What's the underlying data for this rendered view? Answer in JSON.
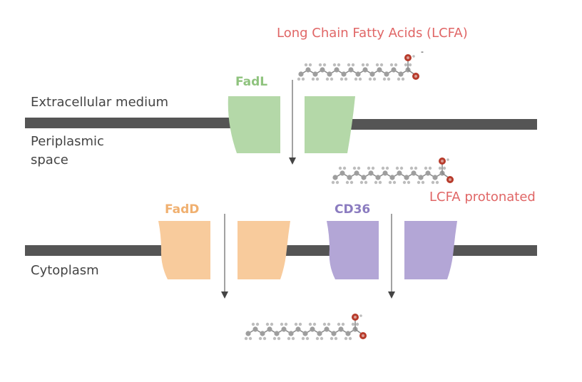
{
  "title": "Long Chain Fatty Acids (LCFA)",
  "labels": {
    "extracellular": "Extracellular medium",
    "periplasmic_line1": "Periplasmic",
    "periplasmic_line2": "space",
    "cytoplasm": "Cytoplasm",
    "protonated": "LCFA protonated"
  },
  "proteins": {
    "fadl": "FadL",
    "fadd": "FadD",
    "cd36": "CD36"
  },
  "colors": {
    "membrane": "#555555",
    "fadl": "#b4d8a8",
    "fadl_text": "#8fc37e",
    "fadd": "#f8cb9c",
    "fadd_text": "#f0b070",
    "cd36": "#b3a6d6",
    "cd36_text": "#8b7cc0",
    "lcfa_text": "#e06666",
    "label_text": "#444444",
    "oxygen": "#b73b2b",
    "carbon": "#9e9e9e"
  },
  "molecule_charge": "-"
}
